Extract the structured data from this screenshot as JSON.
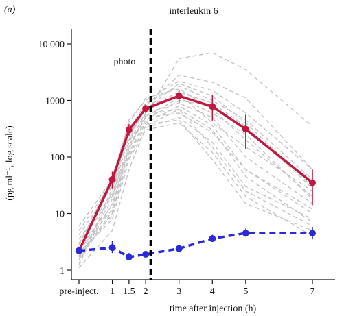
{
  "chart_data": {
    "type": "line",
    "panel_label": "(a)",
    "title": "interleukin 6",
    "xlabel": "time after injection (h)",
    "ylabel": "(pg ml⁻¹, log scale)",
    "y_scale": "log",
    "ylim": [
      0.8,
      20000
    ],
    "xlim": [
      -0.3,
      7.8
    ],
    "y_ticks": [
      {
        "value": 1,
        "label": "1"
      },
      {
        "value": 10,
        "label": "10"
      },
      {
        "value": 100,
        "label": "100"
      },
      {
        "value": 1000,
        "label": "1000"
      },
      {
        "value": 10000,
        "label": "10 000"
      }
    ],
    "x_ticks": [
      {
        "value": 0,
        "label": "pre-inject."
      },
      {
        "value": 1,
        "label": "1"
      },
      {
        "value": 1.5,
        "label": "1.5"
      },
      {
        "value": 2,
        "label": "2"
      },
      {
        "value": 3,
        "label": "3"
      },
      {
        "value": 4,
        "label": "4"
      },
      {
        "value": 5,
        "label": "5"
      },
      {
        "value": 7,
        "label": "7"
      }
    ],
    "annotation": {
      "text": "photo",
      "x": 2.15
    },
    "x": [
      0,
      1,
      1.5,
      2,
      3,
      4,
      5,
      7
    ],
    "series": [
      {
        "color": "#c0183f",
        "style": "solid",
        "values": [
          2.2,
          40,
          300,
          720,
          1200,
          780,
          310,
          35
        ],
        "err_low": [
          1.9,
          28,
          240,
          600,
          900,
          440,
          140,
          14
        ],
        "err_high": [
          2.6,
          55,
          380,
          850,
          1500,
          1250,
          560,
          60
        ]
      },
      {
        "color": "#2a2ad8",
        "style": "dashed",
        "values": [
          2.2,
          2.5,
          1.7,
          1.9,
          2.4,
          3.6,
          4.5,
          4.5
        ],
        "err_low": [
          2.0,
          2.0,
          1.5,
          1.7,
          2.2,
          3.2,
          3.9,
          3.5
        ],
        "err_high": [
          2.5,
          3.3,
          2.0,
          2.1,
          2.7,
          4.2,
          5.4,
          5.8
        ]
      }
    ],
    "individual_traces": {
      "color": "#c4c4c4",
      "style": "dashed",
      "lines": [
        [
          1.6,
          10,
          150,
          550,
          5500,
          7000,
          3500,
          350
        ],
        [
          2.2,
          12,
          200,
          800,
          2800,
          2100,
          1100,
          60
        ],
        [
          3.5,
          22,
          240,
          700,
          2000,
          1200,
          400,
          30
        ],
        [
          1.3,
          28,
          450,
          1000,
          2200,
          1500,
          600,
          60
        ],
        [
          2.5,
          9,
          110,
          400,
          800,
          360,
          60,
          10
        ],
        [
          4.2,
          30,
          330,
          650,
          1300,
          400,
          150,
          25
        ],
        [
          1.1,
          5,
          60,
          330,
          500,
          180,
          30,
          8
        ],
        [
          1.8,
          18,
          160,
          500,
          600,
          270,
          60,
          12
        ],
        [
          5.0,
          35,
          280,
          560,
          700,
          150,
          25,
          6
        ],
        [
          2.8,
          45,
          400,
          1100,
          1600,
          700,
          200,
          20
        ],
        [
          1.5,
          15,
          120,
          450,
          1000,
          800,
          300,
          35
        ],
        [
          2.0,
          8,
          90,
          300,
          400,
          120,
          20,
          4
        ],
        [
          3.0,
          20,
          180,
          600,
          900,
          500,
          100,
          15
        ],
        [
          1.2,
          25,
          300,
          900,
          1800,
          1000,
          450,
          40
        ],
        [
          6.0,
          40,
          220,
          380,
          450,
          90,
          15,
          5
        ],
        [
          2.4,
          14,
          140,
          520,
          1100,
          600,
          250,
          18
        ],
        [
          1.7,
          11,
          100,
          350,
          700,
          300,
          45,
          7
        ],
        [
          2.9,
          32,
          260,
          750,
          1400,
          900,
          350,
          28
        ]
      ]
    }
  }
}
